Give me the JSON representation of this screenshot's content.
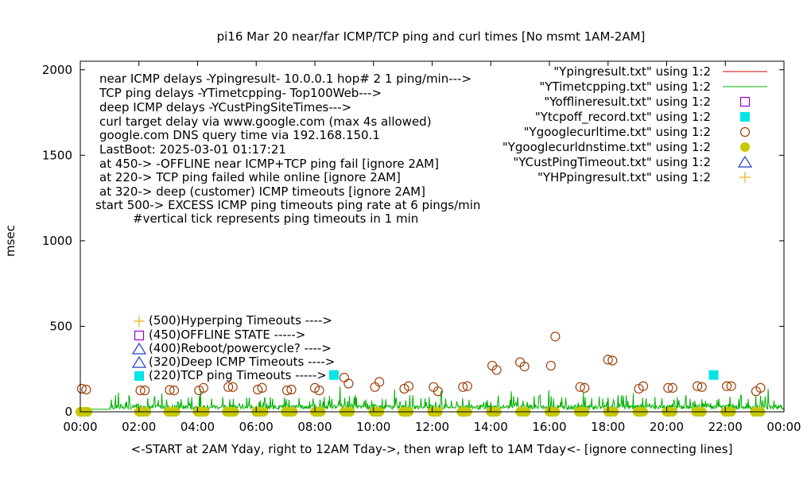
{
  "chart_data": {
    "type": "scatter",
    "title": "pi16 Mar 20  near/far ICMP/TCP ping and curl times [No msmt 1AM-2AM]",
    "xlabel": "<-START at 2AM Yday, right to 12AM Tday->, then wrap left to 1AM Tday<- [ignore connecting lines]",
    "ylabel": "msec",
    "xlim": [
      0,
      24
    ],
    "ylim": [
      0,
      2050
    ],
    "x_ticks": [
      "00:00",
      "02:00",
      "04:00",
      "06:00",
      "08:00",
      "10:00",
      "12:00",
      "14:00",
      "16:00",
      "18:00",
      "20:00",
      "22:00",
      "00:00"
    ],
    "y_ticks": [
      0,
      500,
      1000,
      1500,
      2000
    ],
    "grid": false,
    "legend_position": "top-right",
    "annotations": [
      "near ICMP delays -Ypingresult- 10.0.0.1 hop# 2 1 ping/min--->",
      "TCP ping delays -YTimetcpping- Top100Web--->",
      "deep ICMP delays -YCustPingSiteTimes--->",
      "curl target delay via www.google.com (max 4s allowed)",
      "google.com DNS query time via 192.168.150.1",
      "LastBoot: 2025-03-01 01:17:21",
      "at 450-> -OFFLINE near ICMP+TCP ping fail [ignore 2AM]",
      "at 220-> TCP ping failed while online [ignore 2AM]",
      "at 320-> deep (customer) ICMP timeouts [ignore 2AM]",
      "start 500-> EXCESS ICMP ping timeouts ping rate at 6 pings/min",
      "#vertical tick represents ping timeouts in 1 min"
    ],
    "key_labels": [
      {
        "text": "(500)Hyperping Timeouts ---->",
        "marker": "plus",
        "color": "#e6b422"
      },
      {
        "text": "(450)OFFLINE STATE ----->",
        "marker": "square",
        "color": "#9400d3"
      },
      {
        "text": "(400)Reboot/powercycle? ---->",
        "marker": "triangle",
        "color": "#1f3fbf"
      },
      {
        "text": "(320)Deep ICMP Timeouts ---->",
        "marker": "triangle",
        "color": "#1f3fbf"
      },
      {
        "text": "(220)TCP ping Timeouts ----->",
        "marker": "filled-square",
        "color": "#00e5e5"
      }
    ],
    "series": [
      {
        "name": "\"Ypingresult.txt\" using 1:2",
        "style": "line",
        "color": "#cc0000",
        "values": []
      },
      {
        "name": "\"YTimetcpping.txt\" using 1:2",
        "style": "line",
        "color": "#00b000",
        "baseline": 15,
        "spikes": "frequent 20-100 msec, peaks up to about 150 msec"
      },
      {
        "name": "\"Yofflineresult.txt\" using 1:2",
        "style": "open-square",
        "color": "#9400d3",
        "points": []
      },
      {
        "name": "\"Ytcpoff_record.txt\" using 1:2",
        "style": "filled-square",
        "color": "#00e5e5",
        "points": [
          [
            8.65,
            215
          ],
          [
            21.6,
            215
          ]
        ]
      },
      {
        "name": "\"Ygooglecurltime.txt\" using 1:2",
        "style": "open-circle",
        "color": "#a0400a",
        "points": [
          [
            0.05,
            135
          ],
          [
            0.2,
            130
          ],
          [
            2.05,
            125
          ],
          [
            2.2,
            125
          ],
          [
            3.05,
            128
          ],
          [
            3.2,
            125
          ],
          [
            4.05,
            125
          ],
          [
            4.2,
            140
          ],
          [
            5.05,
            145
          ],
          [
            5.2,
            145
          ],
          [
            6.05,
            130
          ],
          [
            6.2,
            140
          ],
          [
            7.05,
            125
          ],
          [
            7.2,
            130
          ],
          [
            8.0,
            140
          ],
          [
            8.15,
            125
          ],
          [
            9.0,
            200
          ],
          [
            9.15,
            165
          ],
          [
            10.05,
            145
          ],
          [
            10.2,
            175
          ],
          [
            11.05,
            135
          ],
          [
            11.2,
            150
          ],
          [
            12.05,
            145
          ],
          [
            12.2,
            120
          ],
          [
            13.05,
            145
          ],
          [
            13.2,
            150
          ],
          [
            14.05,
            270
          ],
          [
            14.2,
            245
          ],
          [
            15.0,
            290
          ],
          [
            15.15,
            265
          ],
          [
            16.05,
            270
          ],
          [
            16.2,
            440
          ],
          [
            17.05,
            145
          ],
          [
            17.2,
            140
          ],
          [
            18.0,
            305
          ],
          [
            18.15,
            300
          ],
          [
            19.05,
            135
          ],
          [
            19.2,
            150
          ],
          [
            20.05,
            140
          ],
          [
            20.2,
            140
          ],
          [
            21.05,
            150
          ],
          [
            21.2,
            145
          ],
          [
            22.05,
            150
          ],
          [
            22.2,
            150
          ],
          [
            23.05,
            120
          ],
          [
            23.2,
            140
          ]
        ]
      },
      {
        "name": "\"Ygooglecurldnstime.txt\" using 1:2",
        "style": "filled-circle",
        "color": "#c8c800",
        "x_start": 0,
        "x_step": 0.0333,
        "segments": [
          [
            0,
            0.25
          ],
          [
            2,
            2.25
          ],
          [
            3,
            3.25
          ],
          [
            4,
            4.25
          ],
          [
            5,
            5.25
          ],
          [
            6,
            6.25
          ],
          [
            7,
            7.25
          ],
          [
            8,
            8.25
          ],
          [
            9,
            9.25
          ],
          [
            10,
            10.25
          ],
          [
            11,
            11.25
          ],
          [
            12,
            12.25
          ],
          [
            13,
            13.25
          ],
          [
            14,
            14.25
          ],
          [
            15,
            15.25
          ],
          [
            16,
            16.25
          ],
          [
            17,
            17.25
          ],
          [
            18,
            18.25
          ],
          [
            19,
            19.25
          ],
          [
            20,
            20.25
          ],
          [
            21,
            21.25
          ],
          [
            22,
            22.25
          ],
          [
            23,
            23.25
          ]
        ],
        "y": 0
      },
      {
        "name": "\"YCustPingTimeout.txt\" using 1:2",
        "style": "open-triangle",
        "color": "#1f3fbf",
        "points": []
      },
      {
        "name": "\"YHPpingresult.txt\" using 1:2",
        "style": "plus",
        "color": "#e6b422",
        "points": []
      }
    ]
  }
}
